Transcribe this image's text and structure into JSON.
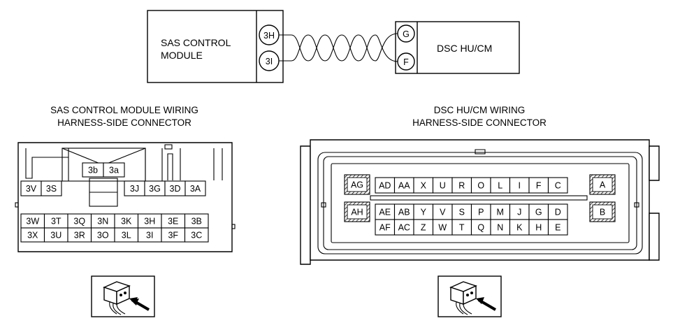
{
  "wiring": {
    "sas_module_lines": [
      "SAS CONTROL",
      "MODULE"
    ],
    "sas_pins": [
      "3H",
      "3I"
    ],
    "dsc_module_label": "DSC HU/CM",
    "dsc_pins": [
      "G",
      "F"
    ]
  },
  "sas_connector": {
    "title_lines": [
      "SAS CONTROL MODULE WIRING",
      "HARNESS-SIDE CONNECTOR"
    ],
    "top_pins": [
      "3b",
      "3a"
    ],
    "row1_left": [
      "3V",
      "3S"
    ],
    "row1_right": [
      "3J",
      "3G",
      "3D",
      "3A"
    ],
    "row2": [
      "3W",
      "3T",
      "3Q",
      "3N",
      "3K",
      "3H",
      "3E",
      "3B"
    ],
    "row3": [
      "3X",
      "3U",
      "3R",
      "3O",
      "3L",
      "3I",
      "3F",
      "3C"
    ]
  },
  "dsc_connector": {
    "title_lines": [
      "DSC HU/CM WIRING",
      "HARNESS-SIDE CONNECTOR"
    ],
    "row1": [
      "AG",
      "AD",
      "AA",
      "X",
      "U",
      "R",
      "O",
      "L",
      "I",
      "F",
      "C",
      "A"
    ],
    "row2": [
      "AH",
      "AE",
      "AB",
      "Y",
      "V",
      "S",
      "P",
      "M",
      "J",
      "G",
      "D",
      "B"
    ],
    "row3": [
      "AF",
      "AC",
      "Z",
      "W",
      "T",
      "Q",
      "N",
      "K",
      "H",
      "E"
    ]
  },
  "icons": [
    "harness-connector-view-icon",
    "harness-connector-view-icon"
  ]
}
